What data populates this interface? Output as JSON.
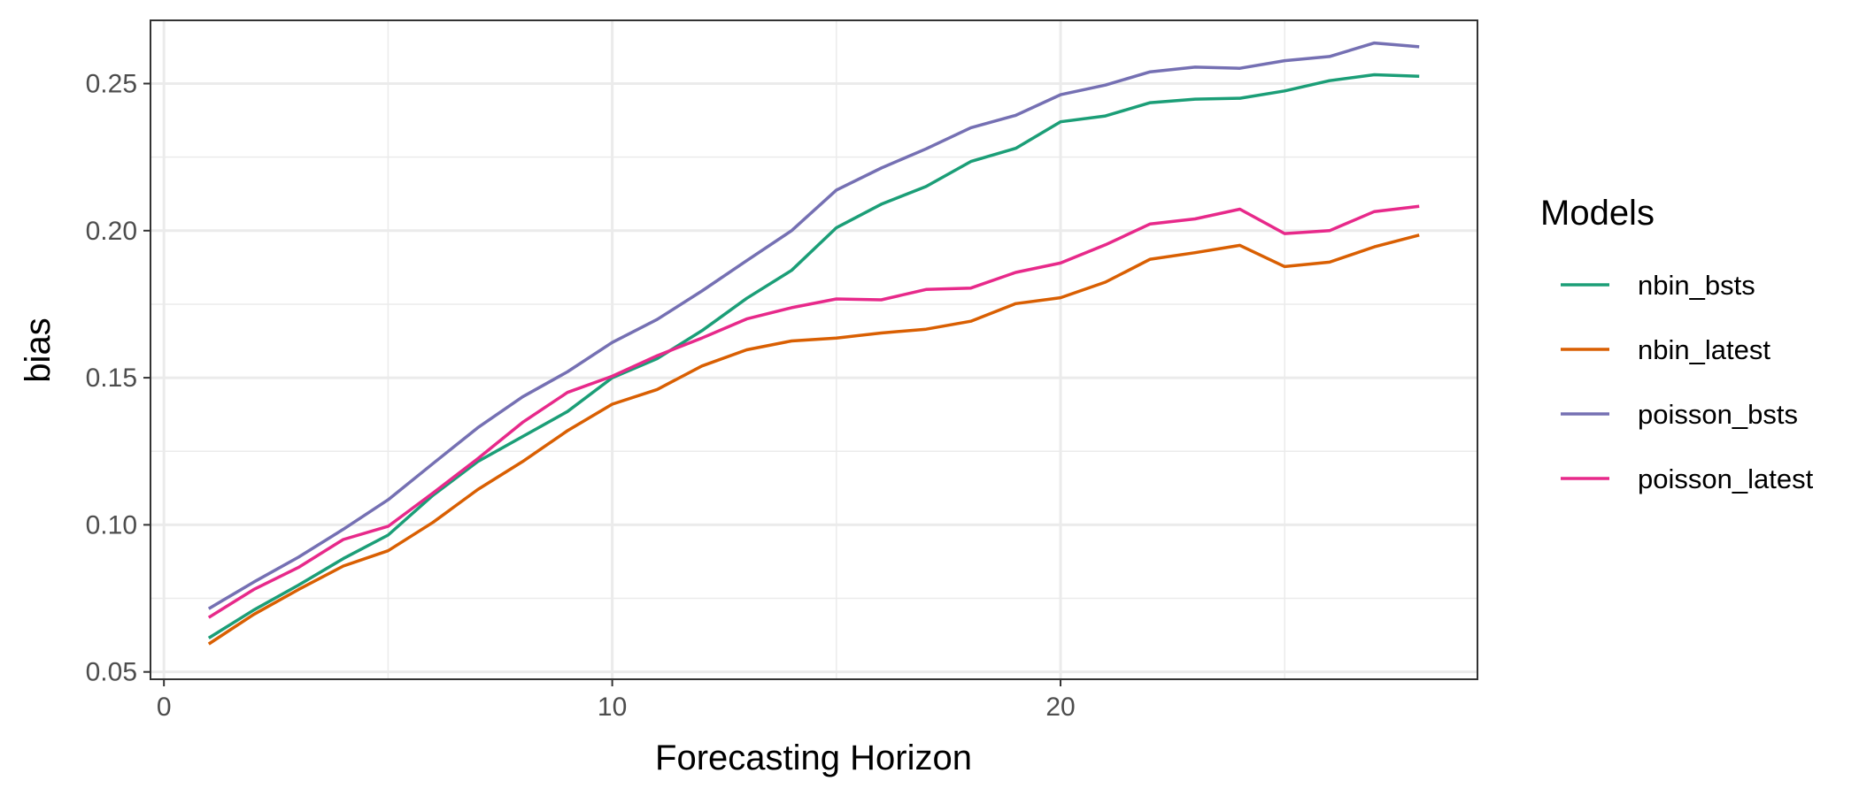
{
  "chart_data": {
    "type": "line",
    "xlabel": "Forecasting Horizon",
    "ylabel": "bias",
    "xlim": [
      -0.3,
      29.3
    ],
    "ylim": [
      0.0475,
      0.2715
    ],
    "x_ticks": [
      0,
      10,
      20
    ],
    "x_tick_labels": [
      "0",
      "10",
      "20"
    ],
    "x_minor_ticks": [
      5,
      15,
      25
    ],
    "y_ticks": [
      0.05,
      0.1,
      0.15,
      0.2,
      0.25
    ],
    "y_tick_labels": [
      "0.05",
      "0.10",
      "0.15",
      "0.20",
      "0.25"
    ],
    "y_minor_ticks": [
      0.075,
      0.125,
      0.175,
      0.225
    ],
    "grid": true,
    "legend": {
      "title": "Models",
      "position": "right"
    },
    "x": [
      1,
      2,
      3,
      4,
      5,
      6,
      7,
      8,
      9,
      10,
      11,
      12,
      13,
      14,
      15,
      16,
      17,
      18,
      19,
      20,
      21,
      22,
      23,
      24,
      25,
      26,
      27,
      28
    ],
    "series": [
      {
        "name": "nbin_bsts",
        "color": "#1b9e77",
        "values": [
          0.0615,
          0.071,
          0.0795,
          0.0885,
          0.0965,
          0.11,
          0.1215,
          0.13,
          0.1385,
          0.15,
          0.1565,
          0.166,
          0.177,
          0.1865,
          0.201,
          0.209,
          0.215,
          0.2235,
          0.228,
          0.237,
          0.239,
          0.2435,
          0.2447,
          0.245,
          0.2475,
          0.251,
          0.253,
          0.2525
        ]
      },
      {
        "name": "nbin_latest",
        "color": "#d95f02",
        "values": [
          0.0595,
          0.0695,
          0.078,
          0.086,
          0.0912,
          0.1008,
          0.112,
          0.1215,
          0.132,
          0.141,
          0.146,
          0.154,
          0.1595,
          0.1625,
          0.1635,
          0.1652,
          0.1665,
          0.1692,
          0.1752,
          0.1772,
          0.1825,
          0.1903,
          0.1925,
          0.195,
          0.1878,
          0.1893,
          0.1945,
          0.1985
        ]
      },
      {
        "name": "poisson_bsts",
        "color": "#7570b3",
        "values": [
          0.0715,
          0.0805,
          0.089,
          0.0985,
          0.1085,
          0.1208,
          0.133,
          0.1435,
          0.152,
          0.162,
          0.1698,
          0.1795,
          0.1898,
          0.2,
          0.2138,
          0.2213,
          0.2278,
          0.235,
          0.2392,
          0.2462,
          0.2495,
          0.254,
          0.2556,
          0.2552,
          0.2578,
          0.2592,
          0.2638,
          0.2625
        ]
      },
      {
        "name": "poisson_latest",
        "color": "#e7298a",
        "values": [
          0.0685,
          0.078,
          0.0855,
          0.095,
          0.0995,
          0.1108,
          0.1225,
          0.1348,
          0.145,
          0.1505,
          0.1575,
          0.1635,
          0.17,
          0.1738,
          0.1768,
          0.1765,
          0.18,
          0.1805,
          0.1858,
          0.189,
          0.1952,
          0.2023,
          0.204,
          0.2073,
          0.199,
          0.2,
          0.2065,
          0.2083
        ]
      }
    ]
  }
}
